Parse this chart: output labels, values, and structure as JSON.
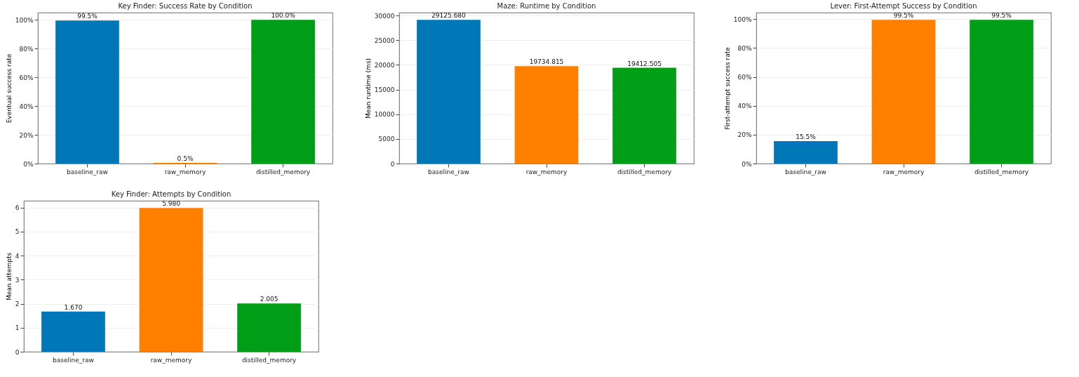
{
  "chart_data": [
    {
      "type": "bar",
      "title": "Key Finder: Success Rate by Condition",
      "ylabel": "Eventual success rate",
      "categories": [
        "baseline_raw",
        "raw_memory",
        "distilled_memory"
      ],
      "values": [
        99.5,
        0.5,
        100.0
      ],
      "colors": [
        "#0077b6",
        "#ff7f00",
        "#009e17"
      ],
      "value_labels": [
        "99.5%",
        "0.5%",
        "100.0%"
      ],
      "ylim": [
        0,
        105
      ],
      "yticks": [
        {
          "value": 0,
          "label": "0%"
        },
        {
          "value": 20,
          "label": "20%"
        },
        {
          "value": 40,
          "label": "40%"
        },
        {
          "value": 60,
          "label": "60%"
        },
        {
          "value": 80,
          "label": "80%"
        },
        {
          "value": 100,
          "label": "100%"
        }
      ],
      "grid": "y"
    },
    {
      "type": "bar",
      "title": "Maze: Runtime by Condition",
      "ylabel": "Mean runtime (ms)",
      "categories": [
        "baseline_raw",
        "raw_memory",
        "distilled_memory"
      ],
      "values": [
        29125.68,
        19734.815,
        19412.505
      ],
      "colors": [
        "#0077b6",
        "#ff7f00",
        "#009e17"
      ],
      "value_labels": [
        "29125.680",
        "19734.815",
        "19412.505"
      ],
      "ylim": [
        0,
        30582
      ],
      "yticks": [
        0,
        5000,
        10000,
        15000,
        20000,
        25000,
        30000
      ],
      "grid": "y"
    },
    {
      "type": "bar",
      "title": "Lever: First-Attempt Success by Condition",
      "ylabel": "First-attempt success rate",
      "categories": [
        "baseline_raw",
        "raw_memory",
        "distilled_memory"
      ],
      "values": [
        15.5,
        99.5,
        99.5
      ],
      "colors": [
        "#0077b6",
        "#ff7f00",
        "#009e17"
      ],
      "value_labels": [
        "15.5%",
        "99.5%",
        "99.5%"
      ],
      "ylim": [
        0,
        104.5
      ],
      "yticks": [
        {
          "value": 0,
          "label": "0%"
        },
        {
          "value": 20,
          "label": "20%"
        },
        {
          "value": 40,
          "label": "40%"
        },
        {
          "value": 60,
          "label": "60%"
        },
        {
          "value": 80,
          "label": "80%"
        },
        {
          "value": 100,
          "label": "100%"
        }
      ],
      "grid": "y"
    },
    {
      "type": "bar",
      "title": "Key Finder: Attempts by Condition",
      "ylabel": "Mean attempts",
      "categories": [
        "baseline_raw",
        "raw_memory",
        "distilled_memory"
      ],
      "values": [
        1.67,
        5.98,
        2.005
      ],
      "colors": [
        "#0077b6",
        "#ff7f00",
        "#009e17"
      ],
      "value_labels": [
        "1.670",
        "5.980",
        "2.005"
      ],
      "ylim": [
        0,
        6.279
      ],
      "yticks": [
        0,
        1,
        2,
        3,
        4,
        5,
        6
      ],
      "grid": "y"
    }
  ]
}
